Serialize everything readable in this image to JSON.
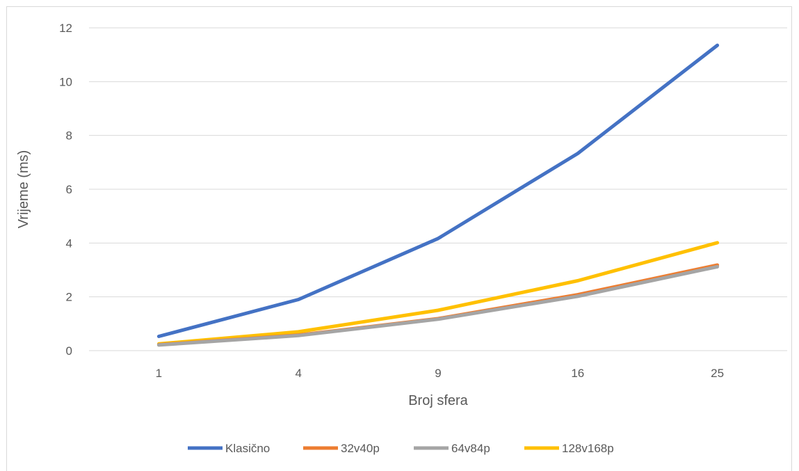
{
  "chart_data": {
    "type": "line",
    "title": "",
    "xlabel": "Broj sfera",
    "ylabel": "Vrijeme (ms)",
    "categories": [
      "1",
      "4",
      "9",
      "16",
      "25"
    ],
    "ylim": [
      0,
      12
    ],
    "yticks": [
      0,
      2,
      4,
      6,
      8,
      10,
      12
    ],
    "grid": true,
    "legend": "bottom",
    "series": [
      {
        "name": "Klasično",
        "color": "#4472c4",
        "values": [
          0.53,
          1.9,
          4.17,
          7.33,
          11.35
        ]
      },
      {
        "name": "32v40p",
        "color": "#ed7d31",
        "values": [
          0.22,
          0.58,
          1.19,
          2.08,
          3.18
        ]
      },
      {
        "name": "64v84p",
        "color": "#a5a5a5",
        "values": [
          0.21,
          0.56,
          1.17,
          2.02,
          3.12
        ]
      },
      {
        "name": "128v168p",
        "color": "#ffc000",
        "values": [
          0.25,
          0.7,
          1.5,
          2.6,
          4.01
        ]
      }
    ]
  }
}
